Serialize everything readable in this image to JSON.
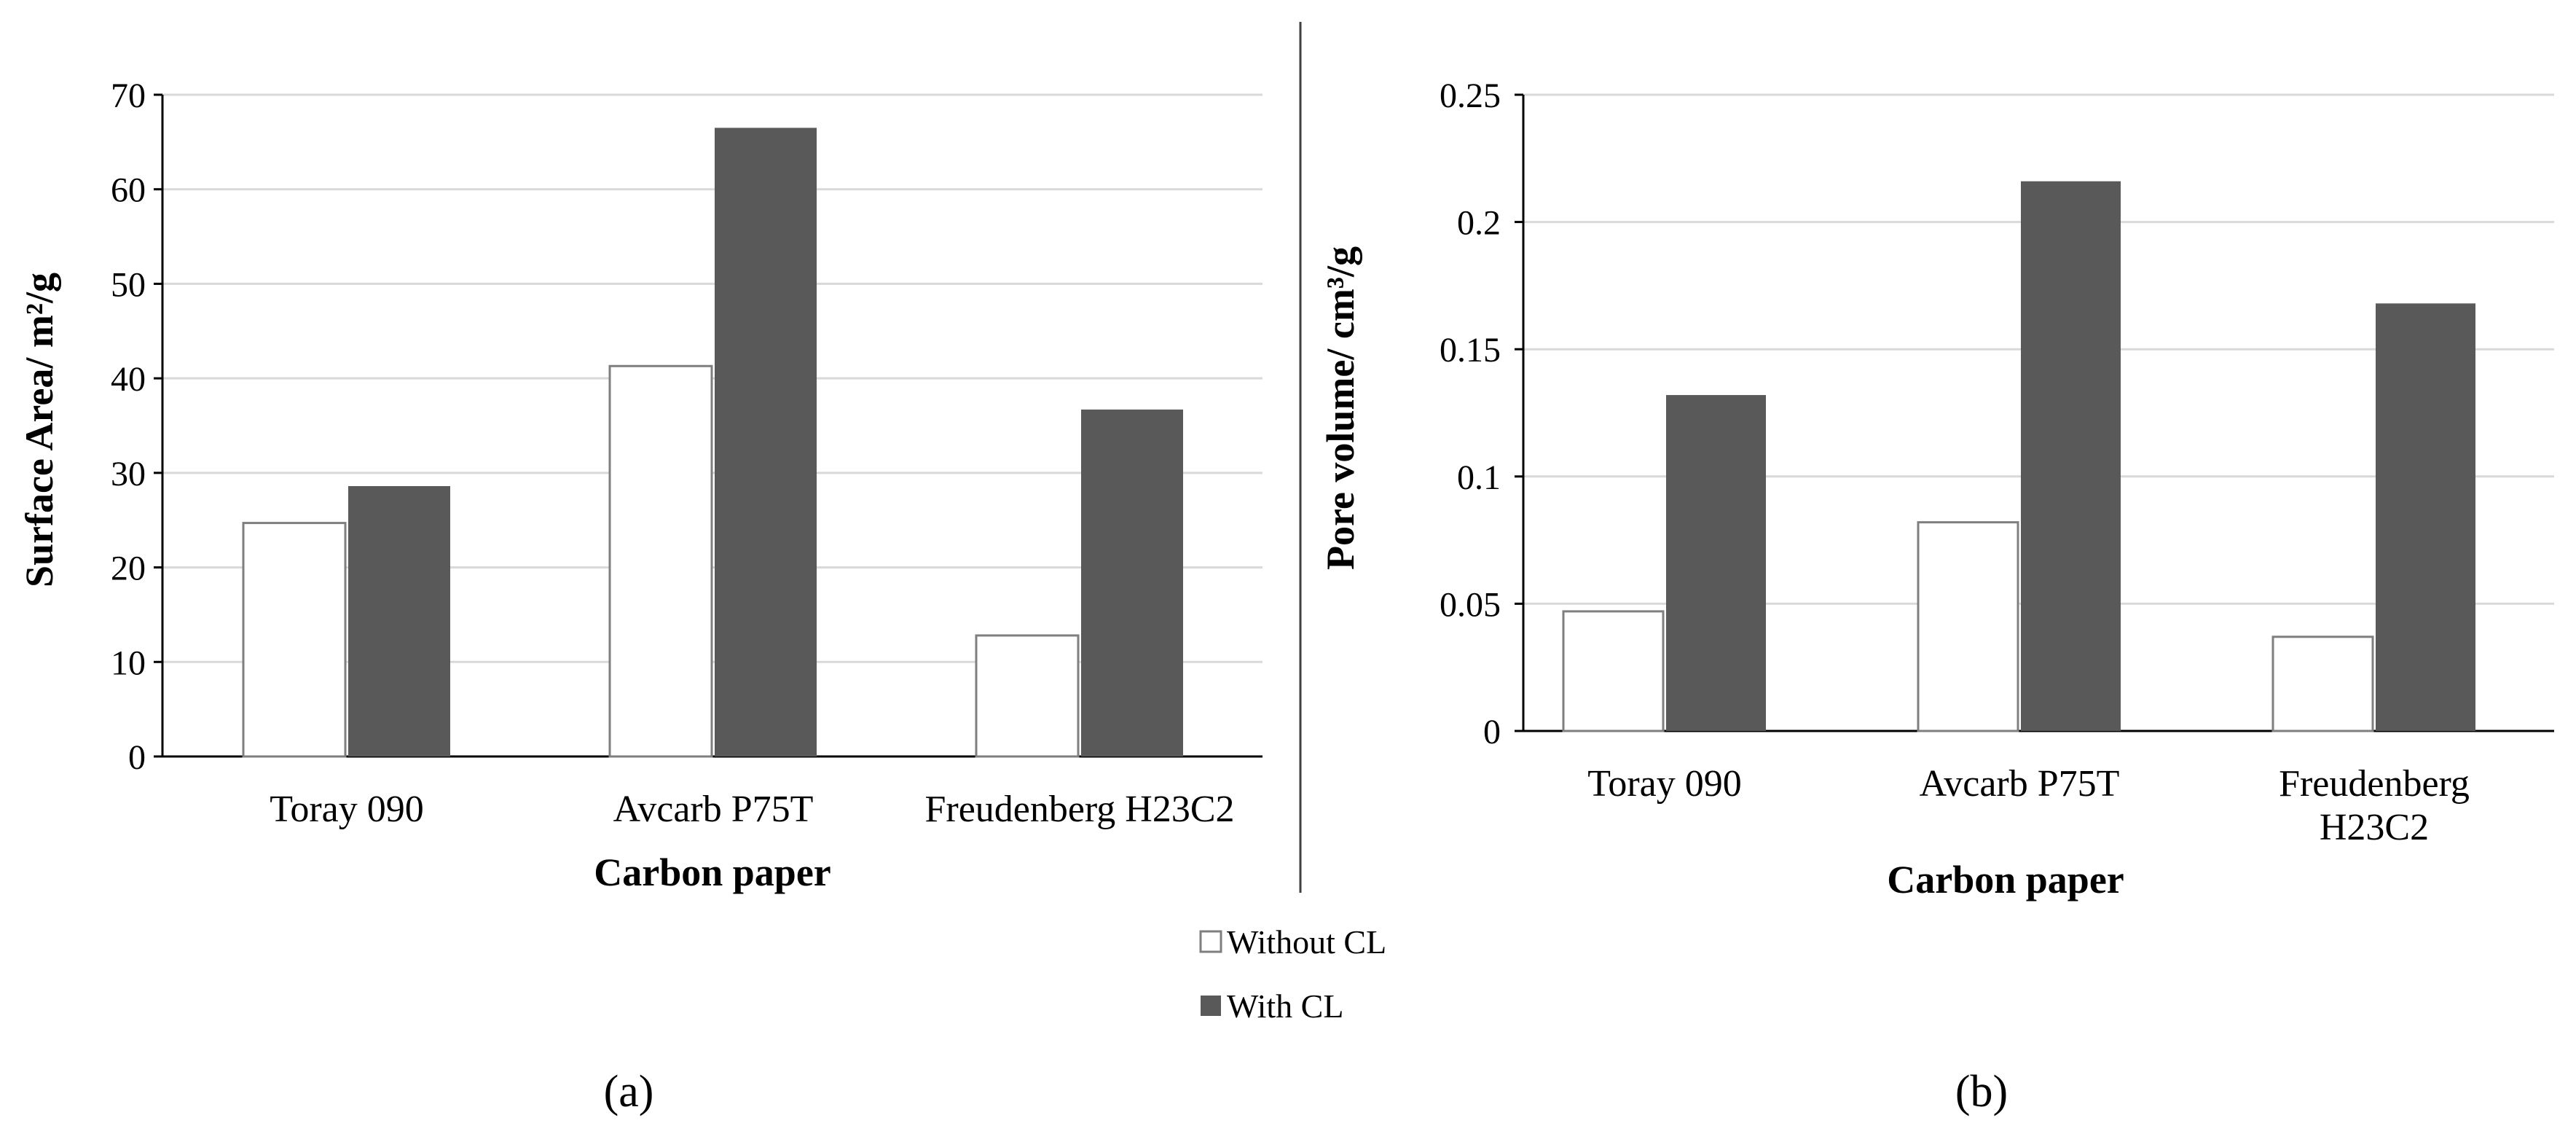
{
  "legend": {
    "items": [
      {
        "label": "Without CL",
        "color": "#ffffff"
      },
      {
        "label": "With CL",
        "color": "#595959"
      }
    ]
  },
  "panel_labels": [
    "(a)",
    "(b)"
  ],
  "colors": {
    "without_cl_fill": "#ffffff",
    "without_cl_stroke": "#7f7f7f",
    "with_cl_fill": "#595959",
    "gridline": "#d9d9d9",
    "axis_line": "#000000",
    "divider": "#404040"
  },
  "chart_data": [
    {
      "type": "bar",
      "panel": "(a)",
      "title": "",
      "xlabel": "Carbon paper",
      "ylabel": "Surface Area/ m²/g",
      "categories": [
        "Toray 090",
        "Avcarb P75T",
        "Freudenberg H23C2"
      ],
      "series": [
        {
          "name": "Without CL",
          "values": [
            24.7,
            41.3,
            12.8
          ]
        },
        {
          "name": "With CL",
          "values": [
            28.6,
            66.5,
            36.7
          ]
        }
      ],
      "ylim": [
        0,
        70
      ],
      "yticks": [
        0,
        10,
        20,
        30,
        40,
        50,
        60,
        70
      ],
      "ytick_labels": [
        "0",
        "10",
        "20",
        "30",
        "40",
        "50",
        "60",
        "70"
      ],
      "grid": true,
      "legend_position": "bottom-center"
    },
    {
      "type": "bar",
      "panel": "(b)",
      "title": "",
      "xlabel": "Carbon paper",
      "ylabel": "Pore volume/ cm³/g",
      "categories": [
        "Toray 090",
        "Avcarb P75T",
        "Freudenberg H23C2"
      ],
      "series": [
        {
          "name": "Without CL",
          "values": [
            0.047,
            0.082,
            0.037
          ]
        },
        {
          "name": "With CL",
          "values": [
            0.132,
            0.216,
            0.168
          ]
        }
      ],
      "ylim": [
        0,
        0.25
      ],
      "yticks": [
        0,
        0.05,
        0.1,
        0.15,
        0.2,
        0.25
      ],
      "ytick_labels": [
        "0",
        "0.05",
        "0.1",
        "0.15",
        "0.2",
        "0.25"
      ],
      "grid": true,
      "legend_position": "bottom-center"
    }
  ]
}
